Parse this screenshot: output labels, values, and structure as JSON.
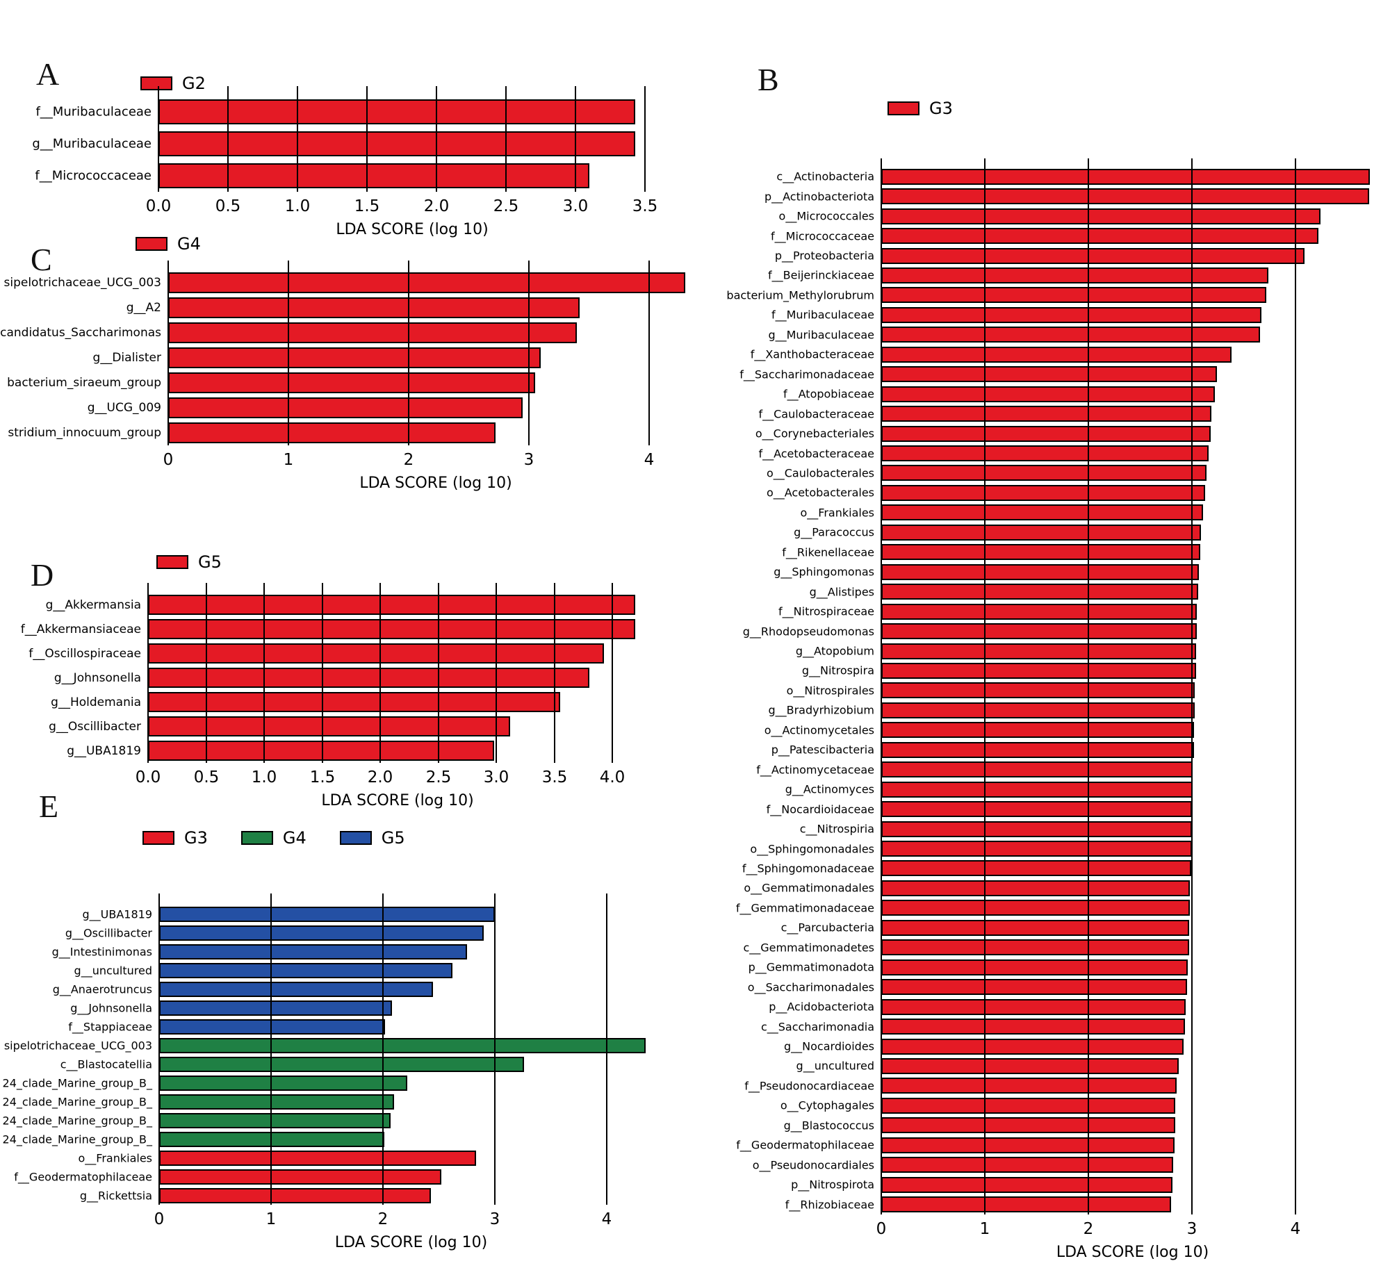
{
  "figure": {
    "background": "#ffffff",
    "colors": {
      "red": "#e41a25",
      "green": "#1f8044",
      "blue": "#2450a4",
      "axis": "#000000"
    }
  },
  "chart_data": [
    {
      "id": "A",
      "type": "bar",
      "letter": "A",
      "legend": [
        {
          "label": "G2",
          "color": "#e41a25"
        }
      ],
      "xlabel": "LDA SCORE (log 10)",
      "xlim": [
        0,
        3.65
      ],
      "grid": true,
      "legend_position": "top",
      "tick_labels": [
        "0.0",
        "0.5",
        "1.0",
        "1.5",
        "2.0",
        "2.5",
        "3.0",
        "3.5"
      ],
      "tick_values": [
        0,
        0.5,
        1,
        1.5,
        2,
        2.5,
        3,
        3.5
      ],
      "bars": [
        {
          "label": "f__Muribaculaceae",
          "value": 3.43
        },
        {
          "label": "g__Muribaculaceae",
          "value": 3.43
        },
        {
          "label": "f__Micrococcaceae",
          "value": 3.1
        }
      ]
    },
    {
      "id": "B",
      "type": "bar",
      "letter": "B",
      "legend": [
        {
          "label": "G3",
          "color": "#e41a25"
        }
      ],
      "xlabel": "LDA SCORE (log 10)",
      "xlim": [
        0,
        4.85
      ],
      "grid": true,
      "legend_position": "top",
      "tick_labels": [
        "0",
        "1",
        "2",
        "3",
        "4"
      ],
      "tick_values": [
        0,
        1,
        2,
        3,
        4
      ],
      "bars": [
        {
          "label": "c__Actinobacteria",
          "value": 4.72
        },
        {
          "label": "p__Actinobacteriota",
          "value": 4.71
        },
        {
          "label": "o__Micrococcales",
          "value": 4.24
        },
        {
          "label": "f__Micrococcaceae",
          "value": 4.22
        },
        {
          "label": "p__Proteobacteria",
          "value": 4.09
        },
        {
          "label": "f__Beijerinckiaceae",
          "value": 3.74
        },
        {
          "label": "bacterium_Methylorubrum",
          "value": 3.72
        },
        {
          "label": "f__Muribaculaceae",
          "value": 3.67
        },
        {
          "label": "g__Muribaculaceae",
          "value": 3.66
        },
        {
          "label": "f__Xanthobacteraceae",
          "value": 3.38
        },
        {
          "label": "f__Saccharimonadaceae",
          "value": 3.24
        },
        {
          "label": "f__Atopobiaceae",
          "value": 3.22
        },
        {
          "label": "f__Caulobacteraceae",
          "value": 3.19
        },
        {
          "label": "o__Corynebacteriales",
          "value": 3.18
        },
        {
          "label": "f__Acetobacteraceae",
          "value": 3.16
        },
        {
          "label": "o__Caulobacterales",
          "value": 3.14
        },
        {
          "label": "o__Acetobacterales",
          "value": 3.13
        },
        {
          "label": "o__Frankiales",
          "value": 3.11
        },
        {
          "label": "g__Paracoccus",
          "value": 3.09
        },
        {
          "label": "f__Rikenellaceae",
          "value": 3.08
        },
        {
          "label": "g__Sphingomonas",
          "value": 3.07
        },
        {
          "label": "g__Alistipes",
          "value": 3.06
        },
        {
          "label": "f__Nitrospiraceae",
          "value": 3.05
        },
        {
          "label": "g__Rhodopseudomonas",
          "value": 3.05
        },
        {
          "label": "g__Atopobium",
          "value": 3.04
        },
        {
          "label": "g__Nitrospira",
          "value": 3.04
        },
        {
          "label": "o__Nitrospirales",
          "value": 3.03
        },
        {
          "label": "g__Bradyrhizobium",
          "value": 3.03
        },
        {
          "label": "o__Actinomycetales",
          "value": 3.02
        },
        {
          "label": "p__Patescibacteria",
          "value": 3.02
        },
        {
          "label": "f__Actinomycetaceae",
          "value": 3.01
        },
        {
          "label": "g__Actinomyces",
          "value": 3.01
        },
        {
          "label": "f__Nocardioidaceae",
          "value": 3.0
        },
        {
          "label": "c__Nitrospiria",
          "value": 3.0
        },
        {
          "label": "o__Sphingomonadales",
          "value": 3.0
        },
        {
          "label": "f__Sphingomonadaceae",
          "value": 2.99
        },
        {
          "label": "o__Gemmatimonadales",
          "value": 2.98
        },
        {
          "label": "f__Gemmatimonadaceae",
          "value": 2.98
        },
        {
          "label": "c__Parcubacteria",
          "value": 2.97
        },
        {
          "label": "c__Gemmatimonadetes",
          "value": 2.97
        },
        {
          "label": "p__Gemmatimonadota",
          "value": 2.96
        },
        {
          "label": "o__Saccharimonadales",
          "value": 2.95
        },
        {
          "label": "p__Acidobacteriota",
          "value": 2.94
        },
        {
          "label": "c__Saccharimonadia",
          "value": 2.93
        },
        {
          "label": "g__Nocardioides",
          "value": 2.92
        },
        {
          "label": "g__uncultured",
          "value": 2.87
        },
        {
          "label": "f__Pseudonocardiaceae",
          "value": 2.85
        },
        {
          "label": "o__Cytophagales",
          "value": 2.84
        },
        {
          "label": "g__Blastococcus",
          "value": 2.84
        },
        {
          "label": "f__Geodermatophilaceae",
          "value": 2.83
        },
        {
          "label": "o__Pseudonocardiales",
          "value": 2.82
        },
        {
          "label": "p__Nitrospirota",
          "value": 2.81
        },
        {
          "label": "f__Rhizobiaceae",
          "value": 2.8
        }
      ]
    },
    {
      "id": "C",
      "type": "bar",
      "letter": "C",
      "legend": [
        {
          "label": "G4",
          "color": "#e41a25"
        }
      ],
      "xlabel": "LDA SCORE (log 10)",
      "xlim": [
        0,
        4.45
      ],
      "grid": true,
      "legend_position": "top",
      "tick_labels": [
        "0",
        "1",
        "2",
        "3",
        "4"
      ],
      "tick_values": [
        0,
        1,
        2,
        3,
        4
      ],
      "bars": [
        {
          "label": "sipelotrichaceae_UCG_003",
          "value": 4.3
        },
        {
          "label": "g__A2",
          "value": 3.42
        },
        {
          "label": "candidatus_Saccharimonas",
          "value": 3.4
        },
        {
          "label": "g__Dialister",
          "value": 3.1
        },
        {
          "label": "bacterium_siraeum_group",
          "value": 3.05
        },
        {
          "label": "g__UCG_009",
          "value": 2.95
        },
        {
          "label": "stridium_innocuum_group",
          "value": 2.72
        }
      ]
    },
    {
      "id": "D",
      "type": "bar",
      "letter": "D",
      "legend": [
        {
          "label": "G5",
          "color": "#e41a25"
        }
      ],
      "xlabel": "LDA SCORE (log 10)",
      "xlim": [
        0,
        4.3
      ],
      "grid": true,
      "legend_position": "top",
      "tick_labels": [
        "0.0",
        "0.5",
        "1.0",
        "1.5",
        "2.0",
        "2.5",
        "3.0",
        "3.5",
        "4.0"
      ],
      "tick_values": [
        0,
        0.5,
        1,
        1.5,
        2,
        2.5,
        3,
        3.5,
        4
      ],
      "bars": [
        {
          "label": "g__Akkermansia",
          "value": 4.2
        },
        {
          "label": "f__Akkermansiaceae",
          "value": 4.2
        },
        {
          "label": "f__Oscillospiraceae",
          "value": 3.93
        },
        {
          "label": "g__Johnsonella",
          "value": 3.8
        },
        {
          "label": "g__Holdemania",
          "value": 3.55
        },
        {
          "label": "g__Oscillibacter",
          "value": 3.12
        },
        {
          "label": "g__UBA1819",
          "value": 2.98
        }
      ]
    },
    {
      "id": "E",
      "type": "bar",
      "letter": "E",
      "legend": [
        {
          "label": "G3",
          "color": "#e41a25"
        },
        {
          "label": "G4",
          "color": "#1f8044"
        },
        {
          "label": "G5",
          "color": "#2450a4"
        }
      ],
      "xlabel": "LDA SCORE (log 10)",
      "xlim": [
        0,
        4.5
      ],
      "grid": true,
      "legend_position": "top",
      "tick_labels": [
        "0",
        "1",
        "2",
        "3",
        "4"
      ],
      "tick_values": [
        0,
        1,
        2,
        3,
        4
      ],
      "bars": [
        {
          "label": "g__UBA1819",
          "group": "G5",
          "value": 3.0
        },
        {
          "label": "g__Oscillibacter",
          "group": "G5",
          "value": 2.9
        },
        {
          "label": "g__Intestinimonas",
          "group": "G5",
          "value": 2.75
        },
        {
          "label": "g__uncultured",
          "group": "G5",
          "value": 2.62
        },
        {
          "label": "g__Anaerotruncus",
          "group": "G5",
          "value": 2.45
        },
        {
          "label": "g__Johnsonella",
          "group": "G5",
          "value": 2.08
        },
        {
          "label": "f__Stappiaceae",
          "group": "G5",
          "value": 2.02
        },
        {
          "label": "sipelotrichaceae_UCG_003",
          "group": "G4",
          "value": 4.35
        },
        {
          "label": "c__Blastocatellia",
          "group": "G4",
          "value": 3.26
        },
        {
          "label": "24_clade_Marine_group_B_",
          "group": "G4",
          "value": 2.22
        },
        {
          "label": "24_clade_Marine_group_B_",
          "group": "G4",
          "value": 2.1
        },
        {
          "label": "24_clade_Marine_group_B_",
          "group": "G4",
          "value": 2.07
        },
        {
          "label": "24_clade_Marine_group_B_",
          "group": "G4",
          "value": 2.01
        },
        {
          "label": "o__Frankiales",
          "group": "G3",
          "value": 2.83
        },
        {
          "label": "f__Geodermatophilaceae",
          "group": "G3",
          "value": 2.52
        },
        {
          "label": "g__Rickettsia",
          "group": "G3",
          "value": 2.43
        }
      ]
    }
  ]
}
